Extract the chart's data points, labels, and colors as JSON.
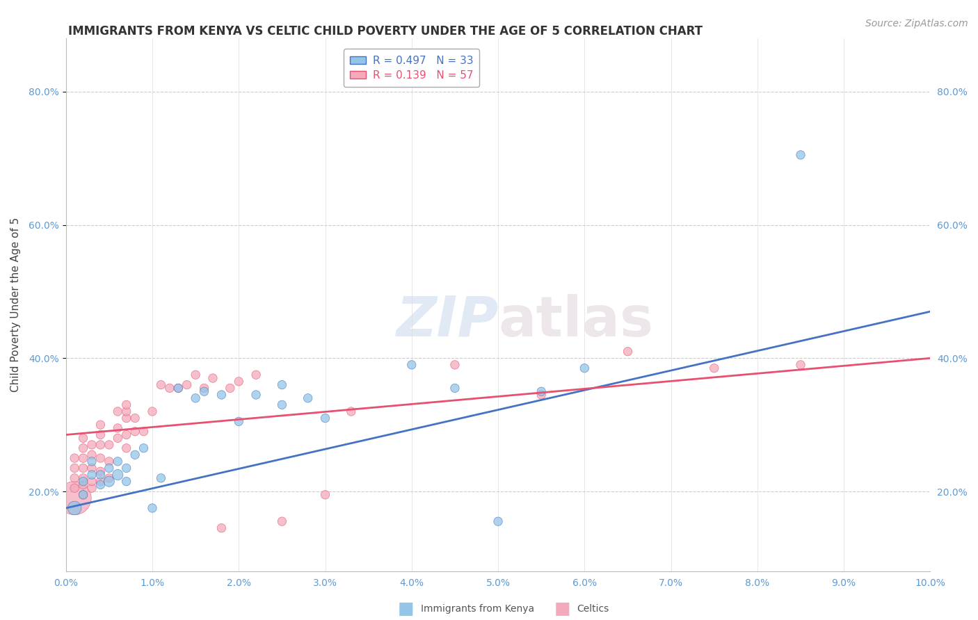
{
  "title": "IMMIGRANTS FROM KENYA VS CELTIC CHILD POVERTY UNDER THE AGE OF 5 CORRELATION CHART",
  "source": "Source: ZipAtlas.com",
  "ylabel": "Child Poverty Under the Age of 5",
  "xlim": [
    0.0,
    0.1
  ],
  "ylim": [
    0.08,
    0.88
  ],
  "xticks": [
    0.0,
    0.01,
    0.02,
    0.03,
    0.04,
    0.05,
    0.06,
    0.07,
    0.08,
    0.09,
    0.1
  ],
  "yticks": [
    0.2,
    0.4,
    0.6,
    0.8
  ],
  "xtick_labels": [
    "0.0%",
    "1.0%",
    "2.0%",
    "3.0%",
    "4.0%",
    "5.0%",
    "6.0%",
    "7.0%",
    "8.0%",
    "9.0%",
    "10.0%"
  ],
  "ytick_labels": [
    "20.0%",
    "40.0%",
    "60.0%",
    "80.0%"
  ],
  "blue_color": "#92C5E8",
  "pink_color": "#F4AABB",
  "blue_line_color": "#4472C4",
  "pink_line_color": "#E85070",
  "blue_R": 0.497,
  "blue_N": 33,
  "pink_R": 0.139,
  "pink_N": 57,
  "blue_scatter_x": [
    0.001,
    0.002,
    0.002,
    0.003,
    0.003,
    0.004,
    0.004,
    0.005,
    0.005,
    0.006,
    0.006,
    0.007,
    0.007,
    0.008,
    0.009,
    0.01,
    0.011,
    0.013,
    0.015,
    0.016,
    0.018,
    0.02,
    0.022,
    0.025,
    0.025,
    0.028,
    0.03,
    0.04,
    0.045,
    0.05,
    0.055,
    0.06,
    0.085
  ],
  "blue_scatter_y": [
    0.175,
    0.195,
    0.215,
    0.225,
    0.245,
    0.21,
    0.225,
    0.215,
    0.235,
    0.225,
    0.245,
    0.215,
    0.235,
    0.255,
    0.265,
    0.175,
    0.22,
    0.355,
    0.34,
    0.35,
    0.345,
    0.305,
    0.345,
    0.33,
    0.36,
    0.34,
    0.31,
    0.39,
    0.355,
    0.155,
    0.35,
    0.385,
    0.705
  ],
  "blue_scatter_size": [
    200,
    80,
    80,
    80,
    80,
    80,
    80,
    120,
    80,
    120,
    80,
    80,
    80,
    80,
    80,
    80,
    80,
    80,
    80,
    80,
    80,
    80,
    80,
    80,
    80,
    80,
    80,
    80,
    80,
    80,
    80,
    80,
    80
  ],
  "pink_scatter_x": [
    0.001,
    0.001,
    0.001,
    0.001,
    0.001,
    0.002,
    0.002,
    0.002,
    0.002,
    0.002,
    0.002,
    0.002,
    0.003,
    0.003,
    0.003,
    0.003,
    0.003,
    0.004,
    0.004,
    0.004,
    0.004,
    0.004,
    0.004,
    0.005,
    0.005,
    0.005,
    0.006,
    0.006,
    0.006,
    0.007,
    0.007,
    0.007,
    0.007,
    0.007,
    0.008,
    0.008,
    0.009,
    0.01,
    0.011,
    0.012,
    0.013,
    0.014,
    0.015,
    0.016,
    0.017,
    0.018,
    0.019,
    0.02,
    0.022,
    0.025,
    0.03,
    0.033,
    0.045,
    0.055,
    0.065,
    0.075,
    0.085
  ],
  "pink_scatter_y": [
    0.19,
    0.205,
    0.22,
    0.235,
    0.25,
    0.195,
    0.21,
    0.22,
    0.235,
    0.25,
    0.265,
    0.28,
    0.205,
    0.215,
    0.235,
    0.255,
    0.27,
    0.215,
    0.23,
    0.25,
    0.27,
    0.285,
    0.3,
    0.22,
    0.245,
    0.27,
    0.28,
    0.295,
    0.32,
    0.265,
    0.285,
    0.31,
    0.32,
    0.33,
    0.29,
    0.31,
    0.29,
    0.32,
    0.36,
    0.355,
    0.355,
    0.36,
    0.375,
    0.355,
    0.37,
    0.145,
    0.355,
    0.365,
    0.375,
    0.155,
    0.195,
    0.32,
    0.39,
    0.345,
    0.41,
    0.385,
    0.39
  ],
  "pink_scatter_size": [
    1200,
    80,
    80,
    80,
    80,
    80,
    80,
    80,
    80,
    80,
    80,
    80,
    80,
    80,
    80,
    80,
    80,
    80,
    80,
    80,
    80,
    80,
    80,
    80,
    80,
    80,
    80,
    80,
    80,
    80,
    80,
    80,
    80,
    80,
    80,
    80,
    80,
    80,
    80,
    80,
    80,
    80,
    80,
    80,
    80,
    80,
    80,
    80,
    80,
    80,
    80,
    80,
    80,
    80,
    80,
    80,
    80
  ],
  "blue_trend_x": [
    0.0,
    0.1
  ],
  "blue_trend_y": [
    0.175,
    0.47
  ],
  "pink_trend_x": [
    0.0,
    0.1
  ],
  "pink_trend_y": [
    0.285,
    0.4
  ],
  "watermark_text": "ZIPatlas",
  "bg_color": "#FFFFFF",
  "grid_color": "#CCCCCC",
  "title_fontsize": 12,
  "axis_label_fontsize": 11,
  "tick_fontsize": 10,
  "legend_fontsize": 11,
  "source_fontsize": 10
}
